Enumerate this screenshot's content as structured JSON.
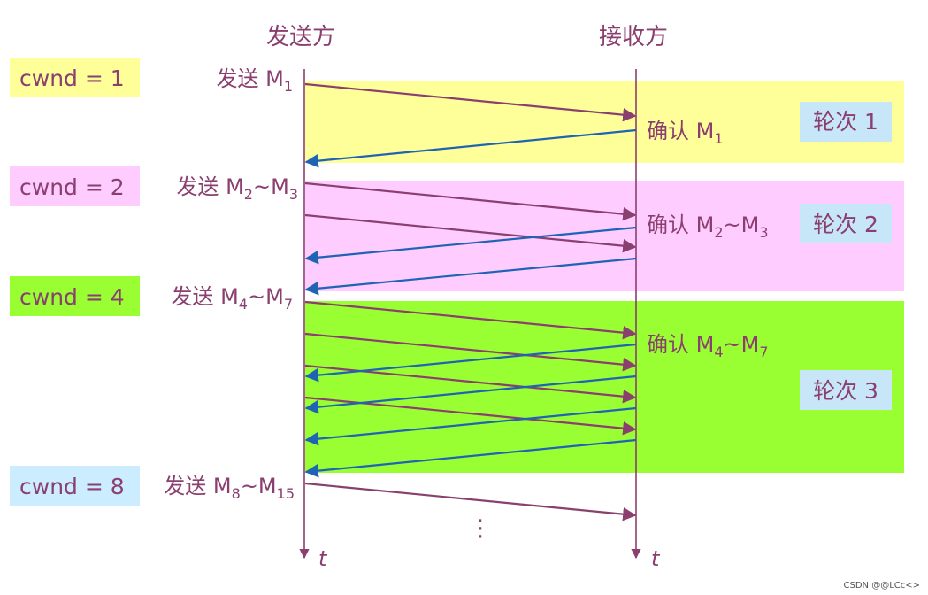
{
  "headers": {
    "sender": "发送方",
    "receiver": "接收方"
  },
  "bands": [
    {
      "color": "#ffff99"
    },
    {
      "color": "#ffccff"
    },
    {
      "color": "#99ff33"
    }
  ],
  "cwnd": [
    {
      "label": "cwnd = 1",
      "color": "#ffff99"
    },
    {
      "label": "cwnd = 2",
      "color": "#ffccff"
    },
    {
      "label": "cwnd = 4",
      "color": "#99ff33"
    },
    {
      "label": "cwnd = 8",
      "color": "#ccecff"
    }
  ],
  "sends": [
    {
      "prefix": "发送 ",
      "parts": [
        [
          "M",
          ""
        ],
        [
          "1",
          "sub"
        ]
      ]
    },
    {
      "prefix": "发送 ",
      "parts": [
        [
          "M",
          ""
        ],
        [
          "2",
          "sub"
        ],
        [
          "~M",
          ""
        ],
        [
          "3",
          "sub"
        ]
      ]
    },
    {
      "prefix": "发送 ",
      "parts": [
        [
          "M",
          ""
        ],
        [
          "4",
          "sub"
        ],
        [
          "~M",
          ""
        ],
        [
          "7",
          "sub"
        ]
      ]
    },
    {
      "prefix": "发送 ",
      "parts": [
        [
          "M",
          ""
        ],
        [
          "8",
          "sub"
        ],
        [
          "~M",
          ""
        ],
        [
          "15",
          "sub"
        ]
      ]
    }
  ],
  "acks": [
    {
      "prefix": "确认 ",
      "parts": [
        [
          "M",
          ""
        ],
        [
          "1",
          "sub"
        ]
      ]
    },
    {
      "prefix": "确认 ",
      "parts": [
        [
          "M",
          ""
        ],
        [
          "2",
          "sub"
        ],
        [
          "~M",
          ""
        ],
        [
          "3",
          "sub"
        ]
      ]
    },
    {
      "prefix": "确认 ",
      "parts": [
        [
          "M",
          ""
        ],
        [
          "4",
          "sub"
        ],
        [
          "~M",
          ""
        ],
        [
          "7",
          "sub"
        ]
      ]
    }
  ],
  "rounds": [
    "轮次 1",
    "轮次 2",
    "轮次 3"
  ],
  "time_label": "t",
  "ellipsis": "⋮",
  "watermark": "CSDN @@LCc<>",
  "colors": {
    "send_arrow": "#8a3f6f",
    "ack_arrow": "#1f63b4",
    "round_box": "#c7e6f7"
  }
}
